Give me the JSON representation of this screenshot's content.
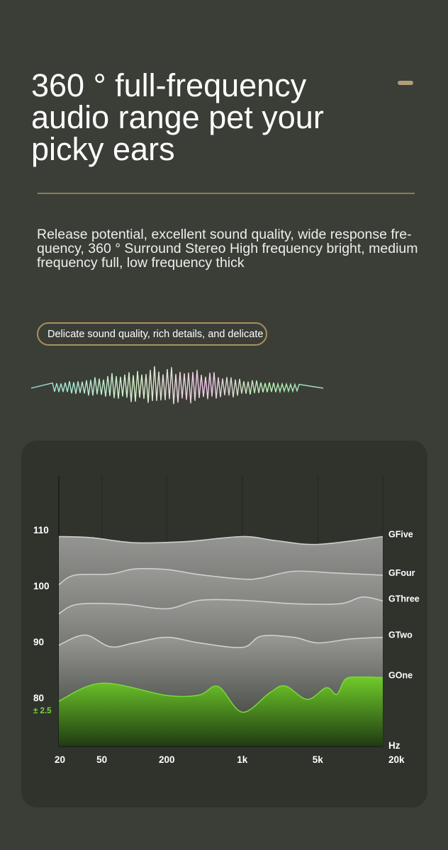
{
  "header": {
    "title": "360 ° full-frequency audio range pet your picky ears"
  },
  "intro": {
    "description": "Release potential, excellent sound quality, wide response fre-quency, 360 ° Surround Stereo High frequency bright, medium frequency full, low frequency thick"
  },
  "badge": {
    "label": "Delicate sound quality, rich details, and delicate"
  },
  "colors": {
    "background": "#3b3e37",
    "card": "#2f332c",
    "accent_gold": "#a89060",
    "gone_green": "#6fcb2a",
    "gray_curve": "#cfcfcf"
  },
  "chart_data": {
    "type": "area",
    "xscale": "log",
    "x_tick_labels": [
      "20",
      "50",
      "200",
      "1k",
      "5k",
      "20k"
    ],
    "x_tick_values": [
      20,
      50,
      200,
      1000,
      5000,
      20000
    ],
    "x_unit": "Hz",
    "y_tick_labels": [
      "110",
      "100",
      "90",
      "80"
    ],
    "y_tick_values": [
      110,
      100,
      90,
      80
    ],
    "tolerance_label": "± 2.5",
    "grid": "vertical",
    "series": [
      {
        "name": "GFive",
        "color": "#cfcfcf",
        "x": [
          20,
          40,
          100,
          300,
          1000,
          2000,
          5000,
          20000
        ],
        "y": [
          108.8,
          108.6,
          107.7,
          107.9,
          108.8,
          108.1,
          107.4,
          108.8
        ]
      },
      {
        "name": "GFour",
        "color": "#cfcfcf",
        "x": [
          20,
          28,
          60,
          100,
          200,
          400,
          1000,
          1500,
          3000,
          7000,
          20000
        ],
        "y": [
          100.2,
          101.9,
          102.1,
          103.0,
          102.9,
          102.0,
          101.2,
          101.4,
          102.6,
          102.3,
          101.9
        ]
      },
      {
        "name": "GThree",
        "color": "#cfcfcf",
        "x": [
          20,
          30,
          80,
          200,
          400,
          1000,
          3000,
          8000,
          13000,
          20000
        ],
        "y": [
          95.0,
          96.7,
          96.7,
          95.9,
          97.4,
          97.4,
          96.8,
          96.8,
          98.0,
          97.3
        ]
      },
      {
        "name": "GTwo",
        "color": "#cfcfcf",
        "x": [
          20,
          35,
          60,
          100,
          200,
          400,
          1000,
          1500,
          3000,
          5000,
          10000,
          20000
        ],
        "y": [
          89.4,
          91.2,
          89.1,
          89.8,
          90.8,
          89.8,
          89.0,
          91.0,
          90.8,
          89.8,
          90.5,
          90.8
        ]
      },
      {
        "name": "GOne",
        "color": "#6fcb2a",
        "x": [
          20,
          50,
          200,
          400,
          600,
          1000,
          1800,
          2500,
          4000,
          6000,
          7500,
          9000,
          12000,
          20000
        ],
        "y": [
          79.4,
          82.6,
          80.4,
          80.5,
          82.0,
          77.4,
          80.9,
          82.1,
          79.7,
          81.8,
          80.6,
          83.3,
          83.7,
          83.6
        ]
      }
    ]
  }
}
